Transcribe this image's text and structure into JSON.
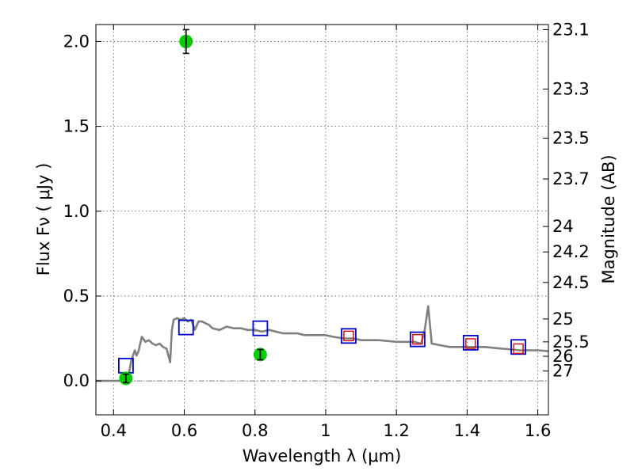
{
  "chart_data": {
    "type": "scatter",
    "title": "",
    "xlabel": "Wavelength  λ (μm)",
    "ylabel": "Flux  Fν ( μJy )",
    "y2label": "Magnitude (AB)",
    "xlim": [
      0.35,
      1.63
    ],
    "ylim": [
      -0.2,
      2.1
    ],
    "grid": true,
    "x_ticks": [
      0.4,
      0.6,
      0.8,
      1.0,
      1.2,
      1.4,
      1.6
    ],
    "x_tick_labels": [
      "0.4",
      "0.6",
      "0.8",
      "1",
      "1.2",
      "1.4",
      "1.6"
    ],
    "y_ticks": [
      0.0,
      0.5,
      1.0,
      1.5,
      2.0
    ],
    "y_tick_labels": [
      "0.0",
      "0.5",
      "1.0",
      "1.5",
      "2.0"
    ],
    "mag_ticks": [
      {
        "label": "23.1",
        "flux": 2.07
      },
      {
        "label": "23.3",
        "flux": 1.72
      },
      {
        "label": "23.5",
        "flux": 1.43
      },
      {
        "label": "23.7",
        "flux": 1.19
      },
      {
        "label": "24",
        "flux": 0.91
      },
      {
        "label": "24.2",
        "flux": 0.76
      },
      {
        "label": "24.5",
        "flux": 0.58
      },
      {
        "label": "25",
        "flux": 0.365
      },
      {
        "label": "25.5",
        "flux": 0.23
      },
      {
        "label": "26",
        "flux": 0.145
      },
      {
        "label": "27",
        "flux": 0.058
      }
    ],
    "model_spectrum": {
      "color": "#808080",
      "x": [
        0.35,
        0.44,
        0.45,
        0.46,
        0.465,
        0.47,
        0.48,
        0.49,
        0.5,
        0.51,
        0.52,
        0.53,
        0.54,
        0.55,
        0.56,
        0.565,
        0.57,
        0.58,
        0.59,
        0.6,
        0.61,
        0.62,
        0.63,
        0.64,
        0.65,
        0.66,
        0.67,
        0.68,
        0.7,
        0.72,
        0.74,
        0.76,
        0.78,
        0.8,
        0.82,
        0.84,
        0.86,
        0.88,
        0.9,
        0.92,
        0.94,
        0.96,
        0.98,
        1.0,
        1.02,
        1.05,
        1.08,
        1.1,
        1.15,
        1.2,
        1.25,
        1.27,
        1.28,
        1.29,
        1.3,
        1.35,
        1.4,
        1.45,
        1.5,
        1.55,
        1.6,
        1.63
      ],
      "y": [
        0.0,
        0.0,
        0.12,
        0.18,
        0.15,
        0.17,
        0.26,
        0.23,
        0.24,
        0.22,
        0.21,
        0.22,
        0.2,
        0.19,
        0.11,
        0.3,
        0.36,
        0.37,
        0.36,
        0.37,
        0.35,
        0.36,
        0.3,
        0.35,
        0.35,
        0.34,
        0.33,
        0.31,
        0.3,
        0.32,
        0.31,
        0.31,
        0.3,
        0.3,
        0.29,
        0.3,
        0.29,
        0.28,
        0.28,
        0.28,
        0.27,
        0.27,
        0.27,
        0.27,
        0.26,
        0.25,
        0.25,
        0.24,
        0.24,
        0.23,
        0.23,
        0.22,
        0.3,
        0.44,
        0.22,
        0.2,
        0.2,
        0.2,
        0.19,
        0.18,
        0.18,
        0.175
      ]
    },
    "model_bands": {
      "color": "#0000cc",
      "x": [
        0.435,
        0.605,
        0.815,
        1.065,
        1.26,
        1.41,
        1.545
      ],
      "y": [
        0.09,
        0.315,
        0.31,
        0.265,
        0.245,
        0.225,
        0.2
      ]
    },
    "upper_points": {
      "color": "#dd0000",
      "x": [
        1.065,
        1.26,
        1.41,
        1.545
      ],
      "y": [
        0.265,
        0.245,
        0.22,
        0.19
      ]
    },
    "observed": {
      "color": "#00cc00",
      "x": [
        0.435,
        0.605,
        0.815
      ],
      "y": [
        0.015,
        2.0,
        0.155
      ],
      "err": [
        0.025,
        0.07,
        0.03
      ]
    }
  }
}
